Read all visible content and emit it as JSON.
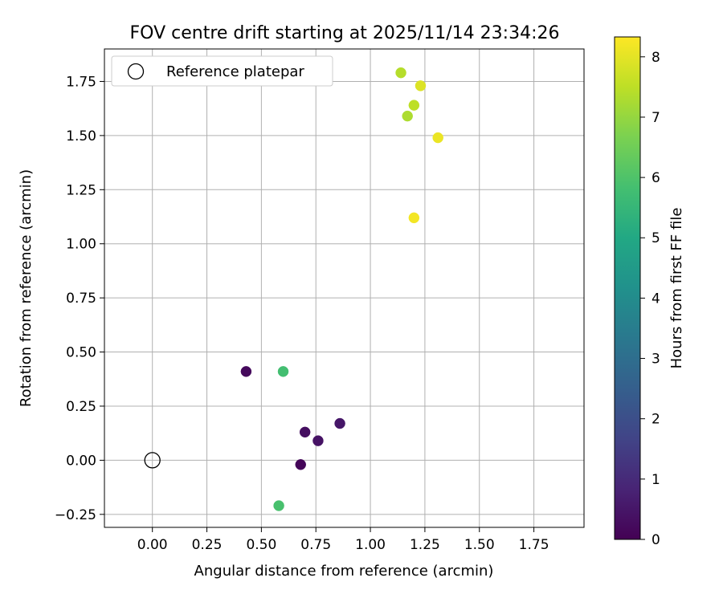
{
  "chart_data": {
    "type": "scatter",
    "title": "FOV centre drift starting at 2025/11/14 23:34:26",
    "xlabel": "Angular distance from reference (arcmin)",
    "ylabel": "Rotation from reference (arcmin)",
    "xlim": [
      -0.22,
      1.98
    ],
    "ylim": [
      -0.31,
      1.9
    ],
    "xticks": [
      0.0,
      0.25,
      0.5,
      0.75,
      1.0,
      1.25,
      1.5,
      1.75
    ],
    "xtick_labels": [
      "0.00",
      "0.25",
      "0.50",
      "0.75",
      "1.00",
      "1.25",
      "1.50",
      "1.75"
    ],
    "yticks": [
      -0.25,
      0.0,
      0.25,
      0.5,
      0.75,
      1.0,
      1.25,
      1.5,
      1.75
    ],
    "ytick_labels": [
      "−0.25",
      "0.00",
      "0.25",
      "0.50",
      "0.75",
      "1.00",
      "1.25",
      "1.50",
      "1.75"
    ],
    "grid": true,
    "legend": {
      "position": "top-left",
      "entries": [
        "Reference platepar"
      ]
    },
    "reference_point": {
      "x": 0.0,
      "y": 0.0
    },
    "points": [
      {
        "x": 0.43,
        "y": 0.41,
        "hours": 0.2
      },
      {
        "x": 0.7,
        "y": 0.13,
        "hours": 0.3
      },
      {
        "x": 0.76,
        "y": 0.09,
        "hours": 0.4
      },
      {
        "x": 0.86,
        "y": 0.17,
        "hours": 0.5
      },
      {
        "x": 0.68,
        "y": -0.02,
        "hours": 0.1
      },
      {
        "x": 0.6,
        "y": 0.41,
        "hours": 5.8
      },
      {
        "x": 0.58,
        "y": -0.21,
        "hours": 5.9
      },
      {
        "x": 1.14,
        "y": 1.79,
        "hours": 7.4
      },
      {
        "x": 1.17,
        "y": 1.59,
        "hours": 7.3
      },
      {
        "x": 1.2,
        "y": 1.64,
        "hours": 7.5
      },
      {
        "x": 1.23,
        "y": 1.73,
        "hours": 7.9
      },
      {
        "x": 1.31,
        "y": 1.49,
        "hours": 8.1
      },
      {
        "x": 1.2,
        "y": 1.12,
        "hours": 8.2
      }
    ],
    "colorbar": {
      "label": "Hours from first FF file",
      "min": 0,
      "max": 8.33,
      "ticks": [
        0,
        1,
        2,
        3,
        4,
        5,
        6,
        7,
        8
      ],
      "tick_labels": [
        "0",
        "1",
        "2",
        "3",
        "4",
        "5",
        "6",
        "7",
        "8"
      ],
      "colormap": "viridis"
    }
  }
}
